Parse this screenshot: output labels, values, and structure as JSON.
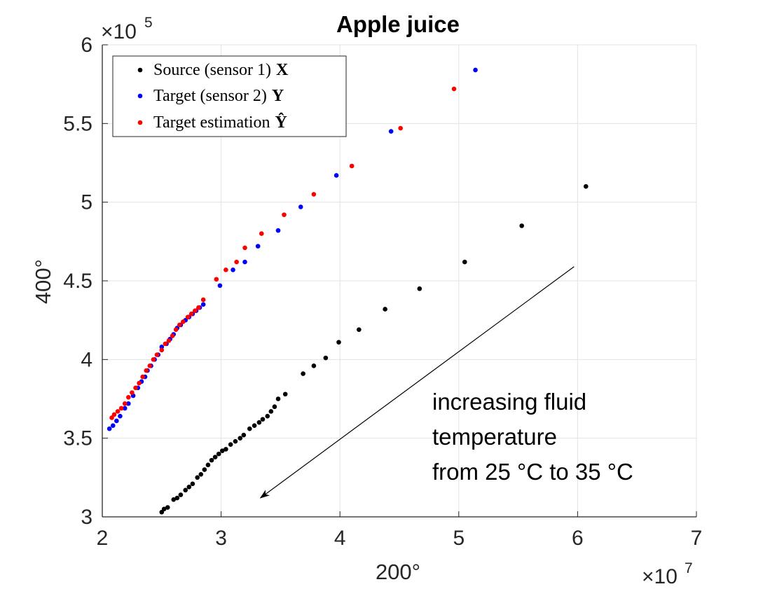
{
  "chart_data": {
    "type": "scatter",
    "title": "Apple juice",
    "xlabel": "200°",
    "ylabel": "400°",
    "x_exponent_label": "×10",
    "x_exponent": "7",
    "y_exponent_label": "×10",
    "y_exponent": "5",
    "xlim": [
      2,
      7
    ],
    "ylim": [
      3,
      6
    ],
    "xticks": [
      2,
      3,
      4,
      5,
      6,
      7
    ],
    "yticks": [
      3,
      3.5,
      4,
      4.5,
      5,
      5.5,
      6
    ],
    "xtick_labels": [
      "2",
      "3",
      "4",
      "5",
      "6",
      "7"
    ],
    "ytick_labels": [
      "3",
      "3.5",
      "4",
      "4.5",
      "5",
      "5.5",
      "6"
    ],
    "grid": true,
    "legend_position": "top-left",
    "series": [
      {
        "name": "Source (sensor 1)",
        "symbol": "X",
        "color": "#000000",
        "points": [
          [
            2.5,
            3.03
          ],
          [
            2.52,
            3.05
          ],
          [
            2.55,
            3.06
          ],
          [
            2.6,
            3.11
          ],
          [
            2.63,
            3.12
          ],
          [
            2.66,
            3.14
          ],
          [
            2.7,
            3.17
          ],
          [
            2.73,
            3.19
          ],
          [
            2.76,
            3.21
          ],
          [
            2.8,
            3.25
          ],
          [
            2.83,
            3.27
          ],
          [
            2.86,
            3.3
          ],
          [
            2.89,
            3.33
          ],
          [
            2.92,
            3.36
          ],
          [
            2.95,
            3.38
          ],
          [
            2.98,
            3.4
          ],
          [
            3.01,
            3.42
          ],
          [
            3.04,
            3.43
          ],
          [
            3.08,
            3.46
          ],
          [
            3.12,
            3.48
          ],
          [
            3.16,
            3.5
          ],
          [
            3.19,
            3.52
          ],
          [
            3.24,
            3.56
          ],
          [
            3.28,
            3.58
          ],
          [
            3.32,
            3.6
          ],
          [
            3.35,
            3.62
          ],
          [
            3.39,
            3.64
          ],
          [
            3.42,
            3.67
          ],
          [
            3.45,
            3.7
          ],
          [
            3.48,
            3.75
          ],
          [
            3.54,
            3.78
          ],
          [
            3.69,
            3.91
          ],
          [
            3.78,
            3.96
          ],
          [
            3.88,
            4.01
          ],
          [
            3.99,
            4.11
          ],
          [
            4.16,
            4.19
          ],
          [
            4.38,
            4.32
          ],
          [
            4.67,
            4.45
          ],
          [
            5.05,
            4.62
          ],
          [
            5.53,
            4.85
          ],
          [
            6.07,
            5.1
          ]
        ]
      },
      {
        "name": "Target (sensor 2)",
        "symbol": "Y",
        "color": "#0000ff",
        "points": [
          [
            2.06,
            3.56
          ],
          [
            2.09,
            3.58
          ],
          [
            2.12,
            3.61
          ],
          [
            2.15,
            3.64
          ],
          [
            2.19,
            3.69
          ],
          [
            2.22,
            3.72
          ],
          [
            2.26,
            3.77
          ],
          [
            2.3,
            3.82
          ],
          [
            2.33,
            3.86
          ],
          [
            2.36,
            3.89
          ],
          [
            2.38,
            3.93
          ],
          [
            2.41,
            3.96
          ],
          [
            2.44,
            4.0
          ],
          [
            2.47,
            4.03
          ],
          [
            2.5,
            4.08
          ],
          [
            2.54,
            4.1
          ],
          [
            2.57,
            4.13
          ],
          [
            2.6,
            4.16
          ],
          [
            2.63,
            4.2
          ],
          [
            2.66,
            4.22
          ],
          [
            2.7,
            4.25
          ],
          [
            2.73,
            4.27
          ],
          [
            2.76,
            4.29
          ],
          [
            2.79,
            4.31
          ],
          [
            2.82,
            4.33
          ],
          [
            2.85,
            4.35
          ],
          [
            2.99,
            4.47
          ],
          [
            3.1,
            4.57
          ],
          [
            3.2,
            4.62
          ],
          [
            3.31,
            4.72
          ],
          [
            3.48,
            4.82
          ],
          [
            3.67,
            4.97
          ],
          [
            3.97,
            5.17
          ],
          [
            4.43,
            5.45
          ],
          [
            5.14,
            5.84
          ]
        ]
      },
      {
        "name": "Target estimation",
        "symbol": "Ŷ",
        "color": "#ff0000",
        "points": [
          [
            2.08,
            3.63
          ],
          [
            2.1,
            3.65
          ],
          [
            2.13,
            3.67
          ],
          [
            2.16,
            3.69
          ],
          [
            2.19,
            3.72
          ],
          [
            2.22,
            3.76
          ],
          [
            2.25,
            3.79
          ],
          [
            2.28,
            3.82
          ],
          [
            2.31,
            3.85
          ],
          [
            2.34,
            3.89
          ],
          [
            2.37,
            3.93
          ],
          [
            2.4,
            3.96
          ],
          [
            2.43,
            4.0
          ],
          [
            2.46,
            4.03
          ],
          [
            2.5,
            4.06
          ],
          [
            2.53,
            4.1
          ],
          [
            2.56,
            4.12
          ],
          [
            2.59,
            4.15
          ],
          [
            2.62,
            4.19
          ],
          [
            2.65,
            4.22
          ],
          [
            2.68,
            4.24
          ],
          [
            2.72,
            4.27
          ],
          [
            2.75,
            4.29
          ],
          [
            2.78,
            4.31
          ],
          [
            2.81,
            4.33
          ],
          [
            2.85,
            4.38
          ],
          [
            2.96,
            4.51
          ],
          [
            3.04,
            4.57
          ],
          [
            3.13,
            4.62
          ],
          [
            3.2,
            4.71
          ],
          [
            3.34,
            4.8
          ],
          [
            3.53,
            4.92
          ],
          [
            3.78,
            5.05
          ],
          [
            4.1,
            5.23
          ],
          [
            4.51,
            5.47
          ],
          [
            4.96,
            5.72
          ]
        ]
      }
    ],
    "annotation": {
      "lines": [
        "increasing fluid",
        "temperature",
        "from 25 °C to 35 °C"
      ],
      "arrow_from": [
        5.97,
        4.59
      ],
      "arrow_to": [
        3.33,
        3.12
      ]
    }
  }
}
